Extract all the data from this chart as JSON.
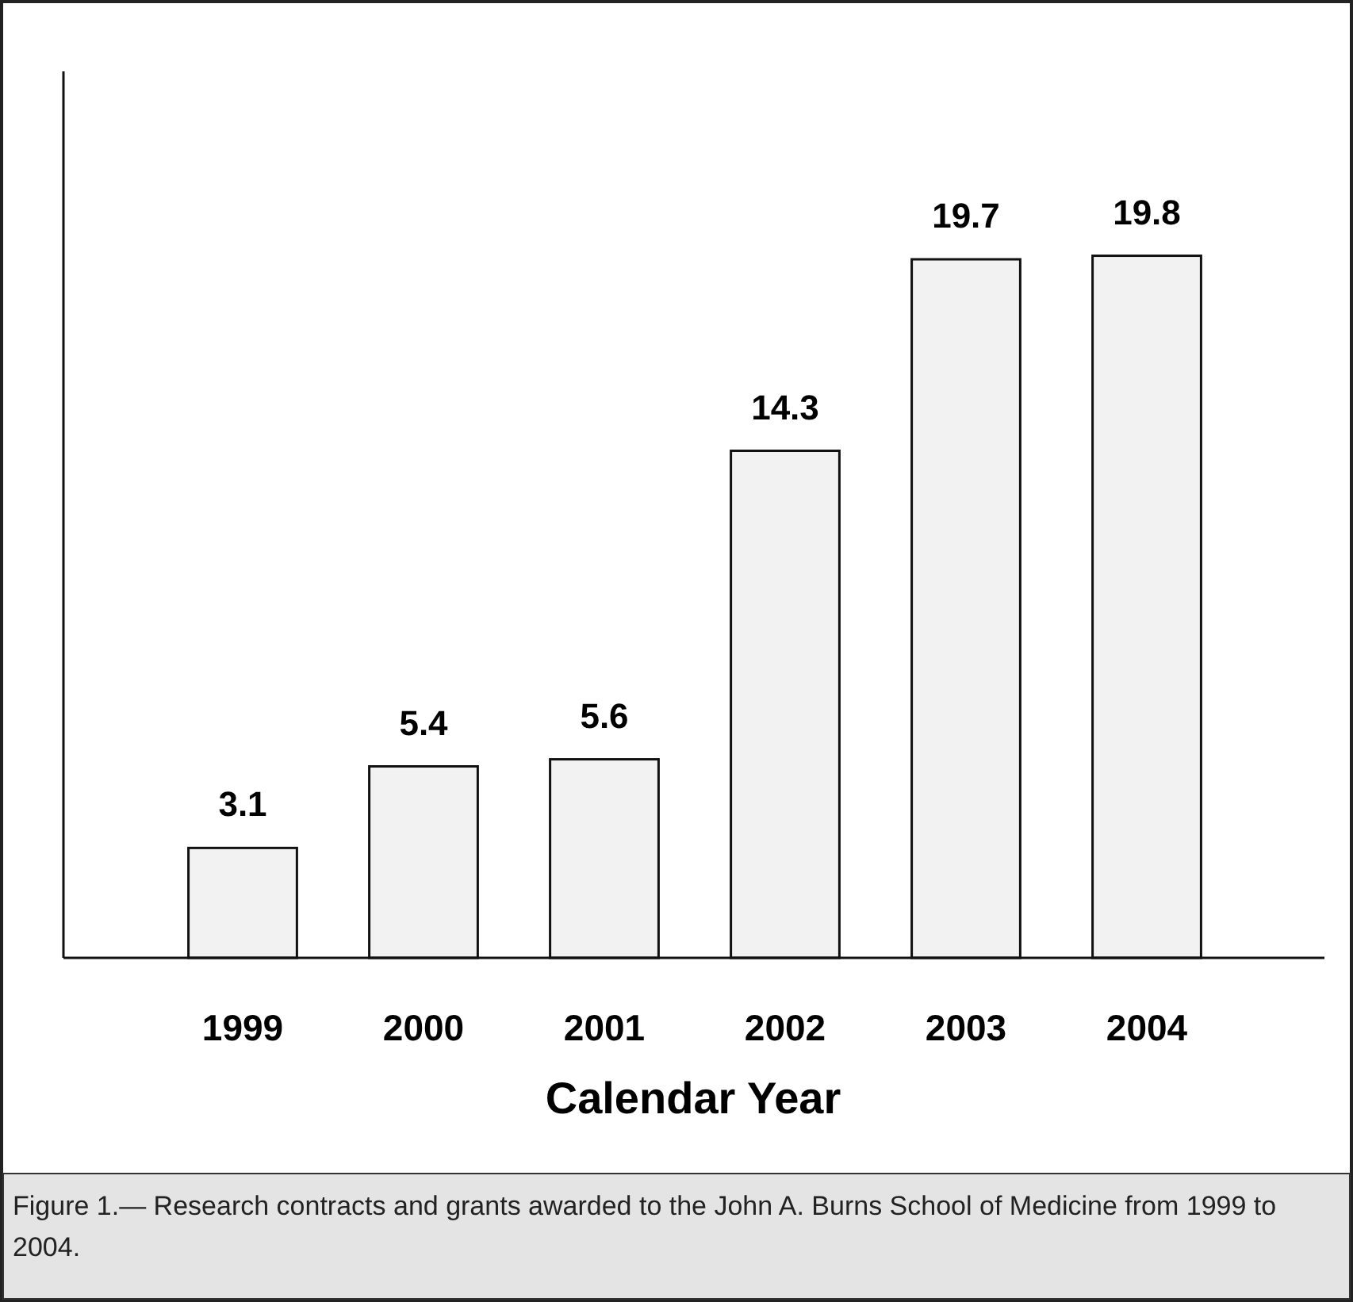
{
  "chart_data": {
    "type": "bar",
    "xlabel": "Calendar Year",
    "categories": [
      "1999",
      "2000",
      "2001",
      "2002",
      "2003",
      "2004"
    ],
    "values": [
      3.1,
      5.4,
      5.6,
      14.3,
      19.7,
      19.8
    ],
    "color": "#f2f2f2",
    "ylim": [
      0,
      25
    ],
    "tick_labels": "x",
    "data_labels": true,
    "annotations": [
      "Figure 1.— Research contracts and grants awarded to the John A. Burns School of Medicine from 1999 to 2004."
    ]
  }
}
